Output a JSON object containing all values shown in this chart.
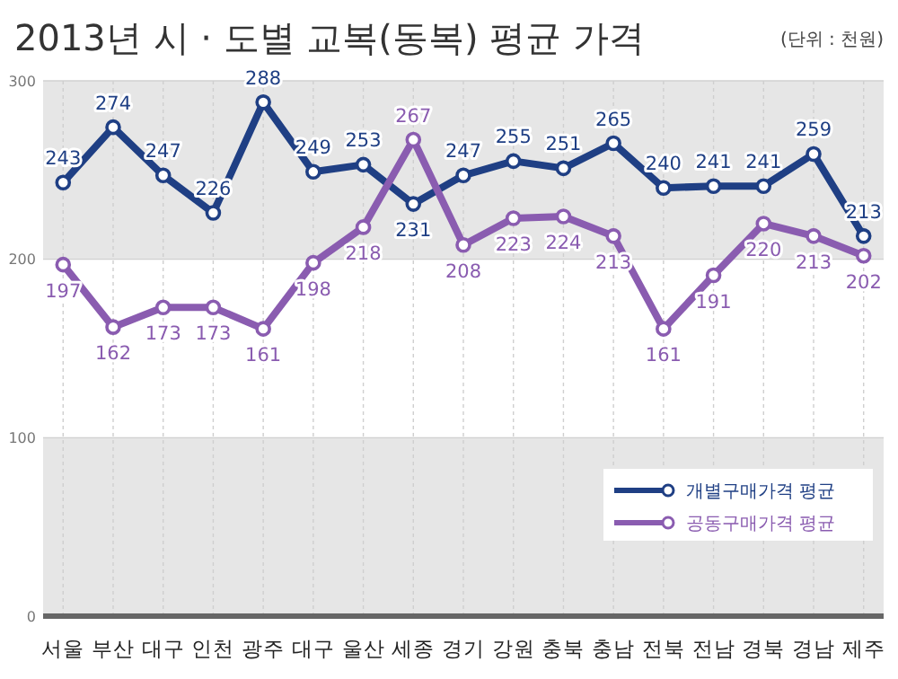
{
  "chart_data": {
    "type": "line",
    "title": "2013년 시 · 도별 교복(동복) 평균 가격",
    "annotations": [
      "(단위 : 천원)"
    ],
    "categories": [
      "서울",
      "부산",
      "대구",
      "인천",
      "광주",
      "대구",
      "울산",
      "세종",
      "경기",
      "강원",
      "충북",
      "충남",
      "전북",
      "전남",
      "경북",
      "경남",
      "제주"
    ],
    "series": [
      {
        "name": "개별구매가격 평균",
        "color": "#1f3f84",
        "values": [
          243,
          274,
          247,
          226,
          288,
          249,
          253,
          231,
          247,
          255,
          251,
          265,
          240,
          241,
          241,
          259,
          213
        ]
      },
      {
        "name": "공동구매가격 평균",
        "color": "#8a5cb0",
        "values": [
          197,
          162,
          173,
          173,
          161,
          198,
          218,
          267,
          208,
          223,
          224,
          213,
          161,
          191,
          220,
          213,
          202
        ]
      }
    ],
    "ylim": [
      0,
      300
    ],
    "yticks": [
      0,
      100,
      200,
      300
    ],
    "grid": true,
    "legend": "bottom right",
    "marker": "circle",
    "line_style": "solid",
    "data_labels": true
  }
}
